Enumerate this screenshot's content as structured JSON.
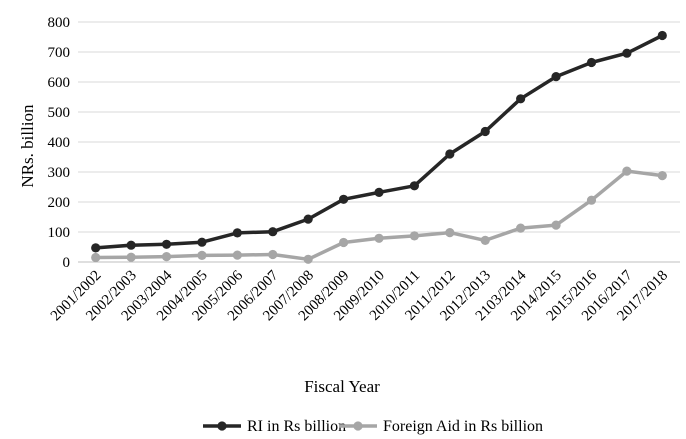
{
  "chart_data": {
    "type": "line",
    "title": "",
    "xlabel": "Fiscal Year",
    "ylabel": "NRs. billion",
    "ylim": [
      0,
      800
    ],
    "yticks": [
      0,
      100,
      200,
      300,
      400,
      500,
      600,
      700,
      800
    ],
    "grid": "horizontal",
    "legend_position": "bottom",
    "categories": [
      "2001/2002",
      "2002/2003",
      "2003/2004",
      "2004/2005",
      "2005/2006",
      "2006/2007",
      "2007/2008",
      "2008/2009",
      "2009/2010",
      "2010/2011",
      "2011/2012",
      "2012/2013",
      "2103/2014",
      "2014/2015",
      "2015/2016",
      "2016/2017",
      "2017/2018"
    ],
    "series": [
      {
        "name": "RI in Rs billion",
        "color": "#262626",
        "values": [
          47,
          56,
          59,
          66,
          97,
          101,
          143,
          209,
          232,
          254,
          360,
          435,
          544,
          618,
          665,
          696,
          755
        ]
      },
      {
        "name": "Foreign Aid in Rs billion",
        "color": "#a6a6a6",
        "values": [
          15,
          16,
          18,
          22,
          23,
          25,
          9,
          65,
          79,
          87,
          98,
          72,
          113,
          123,
          206,
          303,
          288
        ]
      }
    ]
  }
}
